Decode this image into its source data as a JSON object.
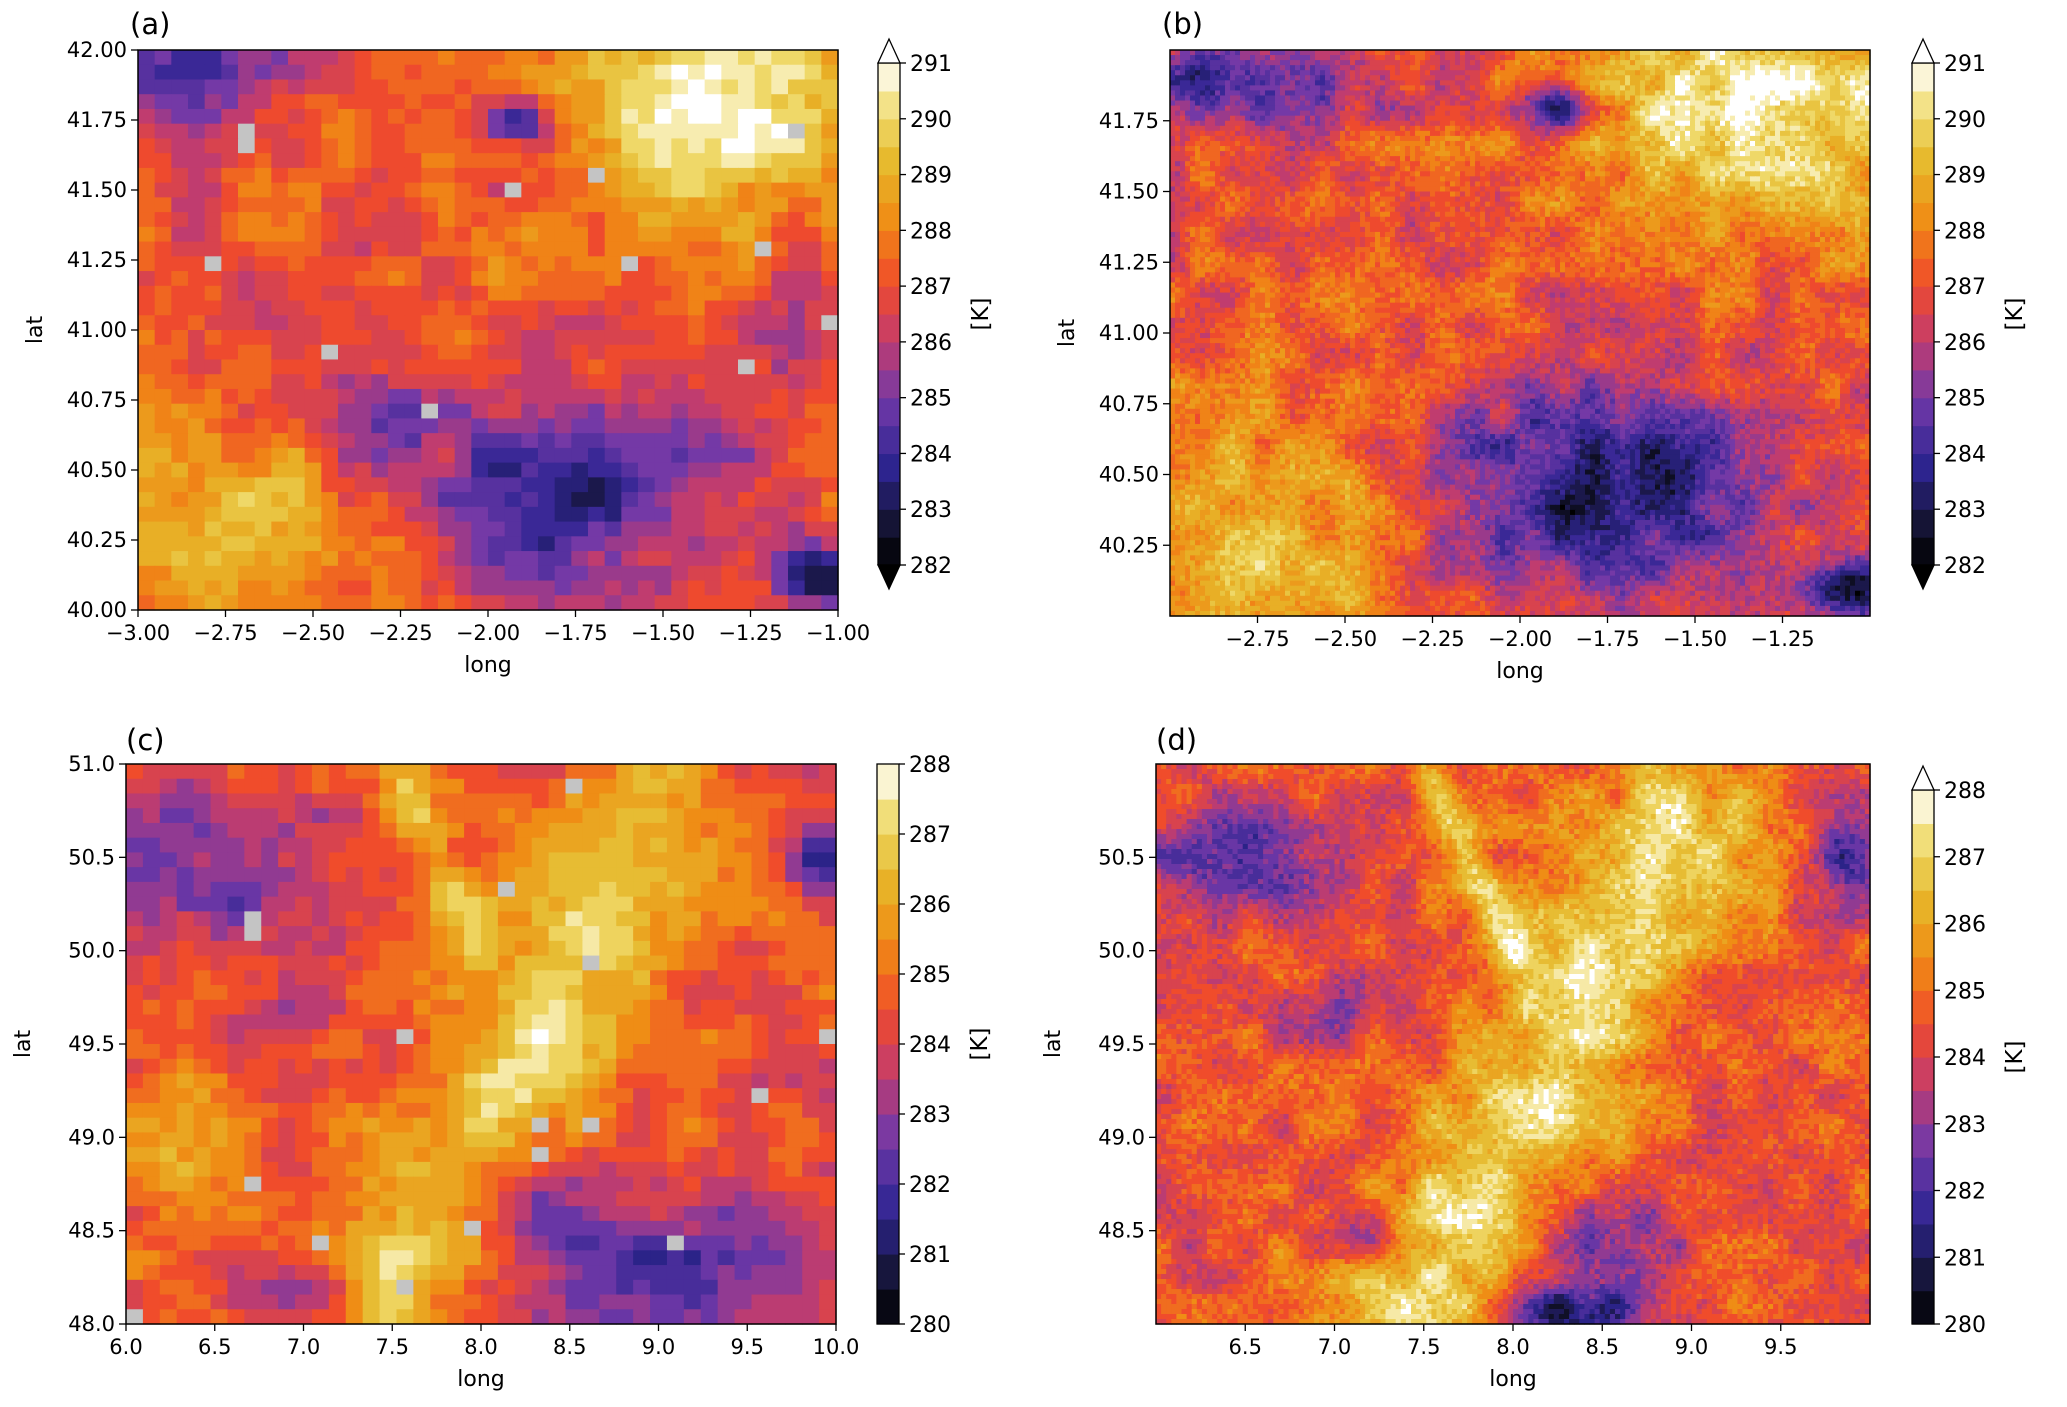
{
  "chart_data": [
    {
      "type": "heatmap",
      "panel_label": "(a)",
      "xlabel": "long",
      "ylabel": "lat",
      "xlim": [
        -3.0,
        -1.0
      ],
      "ylim": [
        40.0,
        42.0
      ],
      "xticks": [
        -3.0,
        -2.75,
        -2.5,
        -2.25,
        -2.0,
        -1.75,
        -1.5,
        -1.25,
        -1.0
      ],
      "xtick_labels": [
        "−3.00",
        "−2.75",
        "−2.50",
        "−2.25",
        "−2.00",
        "−1.75",
        "−1.50",
        "−1.25",
        "−1.00"
      ],
      "yticks": [
        40.0,
        40.25,
        40.5,
        40.75,
        41.0,
        41.25,
        41.5,
        41.75,
        42.0
      ],
      "ytick_labels": [
        "40.00",
        "40.25",
        "40.50",
        "40.75",
        "41.00",
        "41.25",
        "41.50",
        "41.75",
        "42.00"
      ],
      "grid_resolution": "coarse",
      "nan_color": "#c4c4c4",
      "colorbar": {
        "label": "[K]",
        "vmin": 282,
        "vmax": 291,
        "ticks": [
          282,
          283,
          284,
          285,
          286,
          287,
          288,
          289,
          290,
          291
        ],
        "extend": "both"
      },
      "features": [
        {
          "kind": "warm",
          "long": -1.35,
          "lat": 41.78,
          "rx": 0.45,
          "ry": 0.32,
          "value": 290.6
        },
        {
          "kind": "warm",
          "long": -2.8,
          "lat": 40.25,
          "rx": 0.4,
          "ry": 0.4,
          "value": 289.3
        },
        {
          "kind": "cold",
          "long": -1.78,
          "lat": 40.45,
          "rx": 0.38,
          "ry": 0.28,
          "value": 283.6
        },
        {
          "kind": "cold",
          "long": -2.9,
          "lat": 41.9,
          "rx": 0.35,
          "ry": 0.16,
          "value": 284.6
        },
        {
          "kind": "cold",
          "long": -1.92,
          "lat": 41.75,
          "rx": 0.09,
          "ry": 0.07,
          "value": 282.8
        },
        {
          "kind": "cold",
          "long": -1.06,
          "lat": 40.12,
          "rx": 0.1,
          "ry": 0.08,
          "value": 283.3
        },
        {
          "kind": "cold",
          "long": -2.35,
          "lat": 40.7,
          "rx": 0.18,
          "ry": 0.15,
          "value": 285.4
        },
        {
          "kind": "cold",
          "long": -1.12,
          "lat": 41.0,
          "rx": 0.12,
          "ry": 0.12,
          "value": 285.3
        }
      ]
    },
    {
      "type": "heatmap",
      "panel_label": "(b)",
      "xlabel": "long",
      "ylabel": "lat",
      "xlim": [
        -3.0,
        -1.0
      ],
      "ylim": [
        40.0,
        42.0
      ],
      "xticks": [
        -2.75,
        -2.5,
        -2.25,
        -2.0,
        -1.75,
        -1.5,
        -1.25
      ],
      "xtick_labels": [
        "−2.75",
        "−2.50",
        "−2.25",
        "−2.00",
        "−1.75",
        "−1.50",
        "−1.25"
      ],
      "yticks": [
        40.25,
        40.5,
        40.75,
        41.0,
        41.25,
        41.5,
        41.75
      ],
      "ytick_labels": [
        "40.25",
        "40.50",
        "40.75",
        "41.00",
        "41.25",
        "41.50",
        "41.75"
      ],
      "grid_resolution": "fine",
      "nan_color": "#c4c4c4",
      "colorbar": {
        "label": "[K]",
        "vmin": 282,
        "vmax": 291,
        "ticks": [
          282,
          283,
          284,
          285,
          286,
          287,
          288,
          289,
          290,
          291
        ],
        "extend": "both"
      },
      "features": [
        {
          "kind": "warm",
          "long": -1.3,
          "lat": 41.8,
          "rx": 0.5,
          "ry": 0.35,
          "value": 290.6
        },
        {
          "kind": "warm",
          "long": -2.8,
          "lat": 40.25,
          "rx": 0.45,
          "ry": 0.42,
          "value": 289.3
        },
        {
          "kind": "cold",
          "long": -1.78,
          "lat": 40.45,
          "rx": 0.42,
          "ry": 0.32,
          "value": 283.2
        },
        {
          "kind": "cold",
          "long": -2.85,
          "lat": 41.9,
          "rx": 0.4,
          "ry": 0.16,
          "value": 284.2
        },
        {
          "kind": "cold",
          "long": -1.9,
          "lat": 41.8,
          "rx": 0.1,
          "ry": 0.08,
          "value": 282.6
        },
        {
          "kind": "cold",
          "long": -1.06,
          "lat": 40.1,
          "rx": 0.12,
          "ry": 0.09,
          "value": 283.0
        }
      ]
    },
    {
      "type": "heatmap",
      "panel_label": "(c)",
      "xlabel": "long",
      "ylabel": "lat",
      "xlim": [
        6.0,
        10.0
      ],
      "ylim": [
        48.0,
        51.0
      ],
      "xticks": [
        6.0,
        6.5,
        7.0,
        7.5,
        8.0,
        8.5,
        9.0,
        9.5,
        10.0
      ],
      "xtick_labels": [
        "6.0",
        "6.5",
        "7.0",
        "7.5",
        "8.0",
        "8.5",
        "9.0",
        "9.5",
        "10.0"
      ],
      "yticks": [
        48.0,
        48.5,
        49.0,
        49.5,
        50.0,
        50.5,
        51.0
      ],
      "ytick_labels": [
        "48.0",
        "48.5",
        "49.0",
        "49.5",
        "50.0",
        "50.5",
        "51.0"
      ],
      "grid_resolution": "coarse",
      "nan_color": "#c4c4c4",
      "colorbar": {
        "label": "[K]",
        "vmin": 280,
        "vmax": 288,
        "ticks": [
          280,
          281,
          282,
          283,
          284,
          285,
          286,
          287,
          288
        ],
        "extend": "neither"
      },
      "features": [
        {
          "kind": "ridge",
          "path": [
            [
              7.4,
              48.0
            ],
            [
              7.8,
              48.7
            ],
            [
              8.2,
              49.3
            ],
            [
              8.5,
              50.0
            ],
            [
              8.9,
              50.6
            ]
          ],
          "width": 0.35,
          "value": 286.8
        },
        {
          "kind": "ridge",
          "path": [
            [
              7.5,
              51.0
            ],
            [
              7.7,
              50.6
            ],
            [
              8.0,
              50.0
            ]
          ],
          "width": 0.08,
          "value": 286.2
        },
        {
          "kind": "cold",
          "long": 6.5,
          "lat": 50.4,
          "rx": 0.6,
          "ry": 0.35,
          "value": 282.2
        },
        {
          "kind": "cold",
          "long": 9.1,
          "lat": 48.35,
          "rx": 0.8,
          "ry": 0.4,
          "value": 282.3
        },
        {
          "kind": "cold",
          "long": 8.3,
          "lat": 48.6,
          "rx": 0.3,
          "ry": 0.25,
          "value": 282.5
        },
        {
          "kind": "cold",
          "long": 7.0,
          "lat": 48.15,
          "rx": 0.3,
          "ry": 0.15,
          "value": 281.8
        },
        {
          "kind": "cold",
          "long": 9.9,
          "lat": 50.5,
          "rx": 0.15,
          "ry": 0.18,
          "value": 281.5
        },
        {
          "kind": "cold",
          "long": 7.0,
          "lat": 49.7,
          "rx": 0.25,
          "ry": 0.15,
          "value": 282.8
        },
        {
          "kind": "warm",
          "long": 6.3,
          "lat": 49.0,
          "rx": 0.45,
          "ry": 0.4,
          "value": 285.5
        }
      ]
    },
    {
      "type": "heatmap",
      "panel_label": "(d)",
      "xlabel": "long",
      "ylabel": "lat",
      "xlim": [
        6.0,
        10.0
      ],
      "ylim": [
        48.0,
        51.0
      ],
      "xticks": [
        6.5,
        7.0,
        7.5,
        8.0,
        8.5,
        9.0,
        9.5
      ],
      "xtick_labels": [
        "6.5",
        "7.0",
        "7.5",
        "8.0",
        "8.5",
        "9.0",
        "9.5"
      ],
      "yticks": [
        48.5,
        49.0,
        49.5,
        50.0,
        50.5
      ],
      "ytick_labels": [
        "48.5",
        "49.0",
        "49.5",
        "50.0",
        "50.5"
      ],
      "grid_resolution": "fine",
      "nan_color": "#c4c4c4",
      "colorbar": {
        "label": "[K]",
        "vmin": 280,
        "vmax": 288,
        "ticks": [
          280,
          281,
          282,
          283,
          284,
          285,
          286,
          287,
          288
        ],
        "extend": "max"
      },
      "features": [
        {
          "kind": "ridge",
          "path": [
            [
              7.4,
              48.0
            ],
            [
              7.8,
              48.7
            ],
            [
              8.2,
              49.3
            ],
            [
              8.5,
              50.0
            ],
            [
              8.9,
              50.6
            ]
          ],
          "width": 0.35,
          "value": 287.0
        },
        {
          "kind": "ridge",
          "path": [
            [
              7.5,
              51.0
            ],
            [
              7.7,
              50.6
            ],
            [
              8.0,
              50.0
            ]
          ],
          "width": 0.08,
          "value": 286.5
        },
        {
          "kind": "cold",
          "long": 6.4,
          "lat": 50.5,
          "rx": 0.45,
          "ry": 0.25,
          "value": 282.3
        },
        {
          "kind": "cold",
          "long": 8.5,
          "lat": 48.4,
          "rx": 0.35,
          "ry": 0.3,
          "value": 282.2
        },
        {
          "kind": "cold",
          "long": 8.3,
          "lat": 48.05,
          "rx": 0.3,
          "ry": 0.12,
          "value": 281.5
        },
        {
          "kind": "cold",
          "long": 9.9,
          "lat": 50.5,
          "rx": 0.15,
          "ry": 0.18,
          "value": 281.8
        },
        {
          "kind": "cold",
          "long": 7.0,
          "lat": 49.7,
          "rx": 0.25,
          "ry": 0.15,
          "value": 282.8
        },
        {
          "kind": "cold",
          "long": 7.2,
          "lat": 48.45,
          "rx": 0.2,
          "ry": 0.12,
          "value": 282.5
        }
      ]
    }
  ],
  "colormap": {
    "name": "CMRmap-like",
    "stops": [
      [
        0.0,
        "#000000"
      ],
      [
        0.08,
        "#141432"
      ],
      [
        0.2,
        "#2e2592"
      ],
      [
        0.33,
        "#7239a8"
      ],
      [
        0.45,
        "#c43c6c"
      ],
      [
        0.56,
        "#f04b2b"
      ],
      [
        0.68,
        "#f08a14"
      ],
      [
        0.8,
        "#e6b82a"
      ],
      [
        0.9,
        "#f0dc70"
      ],
      [
        1.0,
        "#ffffff"
      ]
    ]
  }
}
